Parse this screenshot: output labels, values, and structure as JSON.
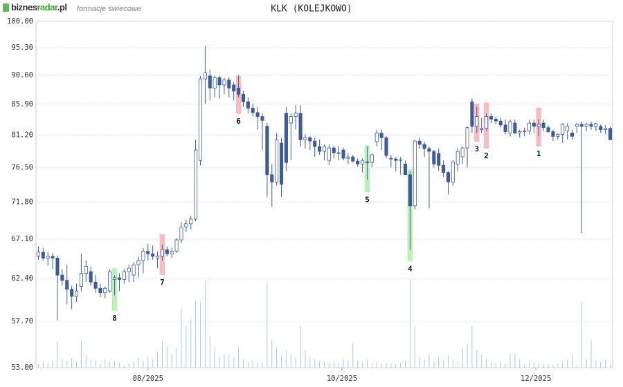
{
  "header": {
    "logo": [
      "biznes",
      "radar",
      ".pl"
    ],
    "subtitle": "formacje świecowe"
  },
  "chart_data": {
    "type": "candlestick",
    "title": "KLK (KOLEJKOWO)",
    "log_y": true,
    "grid": true,
    "up_color": "#ffffff",
    "down_color": "#3f5a99",
    "edge_color": "#3f5a99",
    "volume_color": "#a9cbe8",
    "xlim": [
      -0.5,
      120.5
    ],
    "xticks": [
      {
        "value": 23,
        "label": "08/2025"
      },
      {
        "value": 63.7,
        "label": "10/2025"
      },
      {
        "value": 104.4,
        "label": "12/2025"
      }
    ],
    "ylim": [
      53,
      100
    ],
    "yticks": [
      {
        "value": 100,
        "label": "100.00"
      },
      {
        "value": 95.3,
        "label": "95.30"
      },
      {
        "value": 90.6,
        "label": "90.60"
      },
      {
        "value": 85.9,
        "label": "85.90"
      },
      {
        "value": 81.2,
        "label": "81.20"
      },
      {
        "value": 76.5,
        "label": "76.50"
      },
      {
        "value": 71.8,
        "label": "71.80"
      },
      {
        "value": 67.1,
        "label": "67.10"
      },
      {
        "value": 62.4,
        "label": "62.40"
      },
      {
        "value": 57.7,
        "label": "57.70"
      },
      {
        "value": 53,
        "label": "53.00"
      }
    ],
    "open": [
      65.0,
      65.5,
      64.8,
      65.0,
      64.8,
      62.8,
      62.2,
      61.2,
      60.4,
      61.5,
      63.0,
      63.2,
      62.0,
      61.3,
      60.8,
      61.0,
      62.3,
      62.5,
      62.3,
      63.2,
      62.8,
      64.0,
      64.5,
      65.6,
      65.3,
      64.8,
      65.0,
      65.8,
      65.3,
      65.6,
      67.0,
      68.6,
      69.0,
      69.6,
      77.5,
      90.0,
      90.5,
      88.5,
      90.2,
      89.0,
      89.8,
      89.0,
      88.5,
      87.5,
      86.3,
      85.3,
      84.6,
      84.0,
      82.5,
      75.5,
      74.5,
      80.0,
      84.5,
      83.0,
      84.0,
      84.5,
      80.5,
      80.8,
      80.3,
      79.5,
      78.8,
      77.5,
      79.3,
      78.6,
      79.0,
      77.8,
      78.0,
      77.4,
      77.0,
      77.3,
      77.2,
      80.2,
      81.5,
      80.8,
      77.8,
      77.7,
      77.5,
      77.0,
      75.5,
      71.3,
      80.3,
      79.8,
      79.2,
      78.8,
      78.5,
      76.8,
      75.8,
      74.5,
      77.0,
      78.0,
      79.3,
      86.3,
      82.5,
      82.0,
      82.2,
      84.0,
      83.6,
      83.3,
      82.7,
      81.5,
      83.0,
      81.5,
      81.7,
      81.8,
      83.0,
      82.5,
      83.0,
      82.3,
      81.7,
      81.0,
      81.3,
      81.8,
      81.5,
      82.5,
      82.8,
      82.5,
      82.8,
      82.5,
      82.5,
      82.0,
      82.2
    ],
    "high": [
      66.2,
      66.0,
      65.5,
      65.4,
      65.1,
      63.5,
      64.0,
      61.6,
      61.8,
      65.3,
      64.5,
      63.8,
      62.8,
      61.8,
      61.5,
      63.5,
      62.8,
      63.0,
      63.5,
      64.0,
      64.3,
      65.0,
      66.0,
      66.5,
      66.3,
      65.6,
      66.4,
      66.2,
      66.0,
      67.2,
      69.2,
      69.5,
      70.0,
      80.5,
      90.5,
      95.6,
      91.5,
      90.5,
      90.5,
      90.2,
      90.3,
      89.5,
      90.6,
      88.0,
      87.0,
      86.0,
      85.5,
      84.5,
      83.0,
      77.0,
      81.5,
      80.8,
      85.5,
      84.5,
      85.8,
      85.8,
      81.3,
      81.0,
      80.8,
      80.5,
      79.8,
      79.8,
      79.6,
      79.5,
      79.3,
      78.5,
      78.3,
      77.8,
      77.8,
      79.5,
      78.5,
      82.0,
      82.0,
      81.0,
      78.3,
      78.0,
      78.0,
      77.5,
      76.0,
      80.5,
      80.8,
      80.2,
      79.5,
      79.0,
      79.2,
      77.5,
      76.0,
      77.5,
      79.3,
      79.5,
      82.5,
      86.8,
      85.5,
      83.8,
      84.5,
      84.5,
      84.0,
      83.8,
      83.5,
      83.5,
      83.5,
      82.0,
      82.3,
      83.5,
      83.5,
      83.6,
      83.5,
      82.6,
      82.0,
      81.5,
      83.0,
      83.0,
      82.0,
      83.0,
      83.2,
      83.0,
      83.2,
      83.0,
      82.8,
      82.7,
      82.5
    ],
    "low": [
      64.6,
      64.5,
      63.9,
      63.5,
      57.8,
      61.6,
      59.5,
      59.0,
      59.8,
      61.0,
      62.0,
      61.6,
      60.8,
      60.3,
      60.2,
      60.8,
      60.5,
      61.0,
      61.8,
      62.0,
      62.0,
      62.5,
      63.0,
      64.5,
      64.6,
      63.6,
      64.5,
      65.0,
      64.8,
      65.4,
      66.6,
      68.0,
      68.3,
      69.3,
      76.8,
      86.0,
      86.5,
      87.0,
      86.8,
      87.5,
      87.0,
      86.5,
      87.0,
      85.5,
      84.5,
      84.0,
      82.0,
      79.0,
      72.5,
      71.2,
      74.0,
      72.5,
      76.0,
      77.5,
      82.0,
      79.5,
      79.2,
      79.0,
      78.0,
      78.3,
      77.5,
      76.8,
      77.8,
      77.5,
      77.5,
      77.0,
      77.2,
      76.6,
      75.8,
      74.8,
      76.5,
      79.5,
      79.0,
      77.8,
      76.5,
      76.0,
      75.5,
      75.5,
      65.8,
      70.8,
      79.2,
      78.0,
      71.0,
      76.5,
      76.0,
      75.2,
      72.8,
      74.0,
      76.0,
      77.0,
      76.5,
      81.5,
      81.5,
      81.5,
      81.8,
      83.0,
      82.8,
      82.3,
      81.3,
      81.0,
      81.3,
      80.8,
      81.0,
      81.3,
      81.5,
      81.0,
      81.8,
      81.5,
      80.3,
      80.5,
      80.0,
      80.5,
      80.5,
      81.5,
      67.8,
      81.8,
      82.0,
      81.8,
      81.5,
      81.3,
      80.5
    ],
    "close": [
      65.5,
      64.8,
      65.0,
      64.8,
      62.8,
      62.2,
      61.2,
      60.4,
      61.0,
      63.0,
      63.8,
      62.0,
      61.3,
      60.8,
      61.3,
      63.2,
      62.5,
      62.3,
      63.2,
      63.6,
      64.0,
      64.5,
      65.6,
      65.3,
      65.0,
      65.0,
      65.8,
      65.3,
      65.6,
      67.0,
      68.6,
      69.0,
      69.6,
      79.0,
      90.0,
      91.0,
      88.5,
      90.2,
      89.0,
      89.8,
      88.5,
      88.0,
      87.5,
      86.3,
      85.3,
      84.6,
      84.0,
      83.4,
      75.5,
      74.5,
      80.5,
      74.2,
      77.2,
      84.0,
      84.5,
      80.5,
      80.8,
      80.3,
      79.5,
      78.8,
      79.5,
      79.3,
      78.6,
      78.5,
      77.8,
      78.0,
      77.4,
      77.0,
      77.5,
      77.2,
      78.3,
      81.5,
      80.8,
      78.2,
      77.7,
      77.5,
      77.6,
      75.5,
      71.3,
      80.3,
      79.8,
      79.2,
      78.8,
      77.0,
      76.8,
      75.8,
      74.5,
      77.3,
      78.8,
      79.3,
      82.3,
      82.5,
      84.0,
      82.2,
      84.0,
      83.6,
      83.3,
      82.7,
      81.7,
      83.2,
      81.5,
      81.7,
      81.8,
      83.0,
      82.5,
      82.8,
      82.3,
      81.7,
      81.0,
      81.3,
      82.8,
      82.5,
      81.0,
      82.8,
      82.5,
      82.8,
      82.5,
      82.9,
      82.0,
      82.2,
      80.5
    ],
    "volume": [
      5,
      8,
      6,
      10,
      38,
      12,
      10,
      14,
      8,
      40,
      18,
      12,
      10,
      6,
      12,
      8,
      10,
      6,
      4,
      6,
      8,
      15,
      10,
      16,
      12,
      22,
      38,
      30,
      20,
      28,
      85,
      60,
      70,
      97,
      95,
      126,
      45,
      30,
      15,
      20,
      20,
      15,
      30,
      12,
      8,
      10,
      8,
      8,
      125,
      40,
      30,
      18,
      25,
      20,
      14,
      60,
      25,
      15,
      12,
      10,
      8,
      6,
      8,
      6,
      12,
      10,
      35,
      10,
      8,
      12,
      6,
      8,
      6,
      7,
      6,
      5,
      6,
      10,
      128,
      60,
      15,
      12,
      20,
      8,
      16,
      10,
      18,
      12,
      8,
      28,
      35,
      60,
      25,
      18,
      12,
      8,
      6,
      8,
      6,
      20,
      20,
      12,
      5,
      6,
      8,
      6,
      6,
      5,
      4,
      6,
      8,
      12,
      20,
      4,
      95,
      12,
      40,
      10,
      8,
      12,
      6
    ],
    "patterns": [
      {
        "label": "1",
        "index": 105,
        "high": 85.4,
        "low": 79.5,
        "color": "#f6b3b6"
      },
      {
        "label": "2",
        "index": 94,
        "high": 86.2,
        "low": 79.2,
        "color": "#f6b3b6"
      },
      {
        "label": "3",
        "index": 92,
        "high": 86.0,
        "low": 80.2,
        "color": "#f6b3b6"
      },
      {
        "label": "4",
        "index": 78,
        "high": 76.3,
        "low": 64.4,
        "color": "#b3efae"
      },
      {
        "label": "5",
        "index": 69,
        "high": 79.7,
        "low": 73.1,
        "color": "#b3efae"
      },
      {
        "label": "6",
        "index": 42,
        "high": 90.5,
        "low": 84.4,
        "color": "#f6b3b6"
      },
      {
        "label": "7",
        "index": 26,
        "high": 67.7,
        "low": 62.8,
        "color": "#f6b3b6"
      },
      {
        "label": "8",
        "index": 16,
        "high": 63.6,
        "low": 58.8,
        "color": "#b3efae"
      }
    ]
  }
}
